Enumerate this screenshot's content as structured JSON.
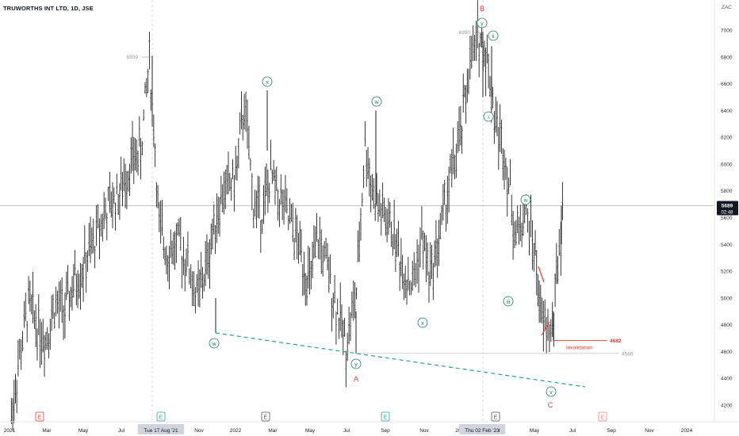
{
  "header": {
    "title": "TRUWORTHS INT LTD, 1D, JSE",
    "currency": "ZAC"
  },
  "colors": {
    "bars": "#1f1f1f",
    "wave": "#1a7a5a",
    "red": "#e53935",
    "teal": "#2a9d8f",
    "grid": "#d8dbe0"
  },
  "chart_data": {
    "type": "line",
    "title": "TRUWORTHS INT LTD, 1D, JSE",
    "x_axis": {
      "ticks": [
        "2021",
        "Mar",
        "May",
        "Jul",
        "Tue 17 Aug '21",
        "Nov",
        "2022",
        "Mar",
        "May",
        "Jul",
        "Sep",
        "Nov",
        "20",
        "Thu 02 Feb '23",
        "r",
        "May",
        "Jul",
        "Sep",
        "Nov",
        "2024"
      ],
      "range": [
        "2021-01-01",
        "2024-03-31"
      ]
    },
    "y_axis": {
      "label": "ZAC",
      "ticks": [
        4200,
        4400,
        4600,
        4800,
        5000,
        5200,
        5400,
        5600,
        5800,
        6000,
        6200,
        6400,
        6600,
        6800,
        7000
      ],
      "range": [
        4090,
        7210
      ]
    },
    "series": [
      {
        "x": [
          "2021-01-04",
          "2021-01-15",
          "2021-02-01",
          "2021-02-15",
          "2021-03-01",
          "2021-03-15",
          "2021-04-01",
          "2021-04-15",
          "2021-05-03",
          "2021-05-17",
          "2021-06-01",
          "2021-06-15",
          "2021-07-01",
          "2021-07-15",
          "2021-08-02",
          "2021-08-16",
          "2021-08-23",
          "2021-09-01",
          "2021-09-15",
          "2021-10-01",
          "2021-10-15",
          "2021-11-01",
          "2021-11-15",
          "2021-12-01",
          "2021-12-15",
          "2022-01-03",
          "2022-01-17",
          "2022-02-01",
          "2022-02-15",
          "2022-03-01",
          "2022-03-15",
          "2022-04-01",
          "2022-04-15",
          "2022-05-03",
          "2022-05-17",
          "2022-06-01",
          "2022-06-15",
          "2022-07-01",
          "2022-07-18",
          "2022-08-01",
          "2022-08-15",
          "2022-09-01",
          "2022-09-15",
          "2022-10-03",
          "2022-10-17",
          "2022-11-01",
          "2022-11-15",
          "2022-12-01",
          "2022-12-15",
          "2023-01-03",
          "2023-01-16",
          "2023-02-02",
          "2023-02-15",
          "2023-03-01",
          "2023-03-15",
          "2023-04-03",
          "2023-04-17",
          "2023-05-02",
          "2023-05-15",
          "2023-06-01",
          "2023-06-12",
          "2023-06-20"
        ],
        "close": [
          4120,
          4500,
          4950,
          4800,
          4700,
          4950,
          4900,
          5100,
          5250,
          5400,
          5600,
          5700,
          5800,
          6000,
          6100,
          6780,
          6300,
          5500,
          5350,
          5400,
          5300,
          5000,
          5200,
          5600,
          5800,
          5900,
          6450,
          5700,
          5650,
          5900,
          5750,
          5550,
          5400,
          5100,
          5450,
          5200,
          4950,
          4650,
          5050,
          6150,
          5750,
          5600,
          5500,
          5200,
          5100,
          5450,
          5150,
          5500,
          5850,
          6200,
          6700,
          6950,
          6800,
          6300,
          6100,
          5450,
          5650,
          5400,
          4800,
          4750,
          5400,
          5680
        ]
      }
    ],
    "annotations": [
      {
        "text": "6809",
        "kind": "price-label"
      },
      {
        "text": "6990",
        "kind": "price-label"
      },
      {
        "text": "4586",
        "kind": "price-label"
      },
      {
        "text": "4682",
        "kind": "price-label-red"
      },
      {
        "text": "Invalidation",
        "kind": "red-text"
      },
      {
        "text": "B",
        "kind": "wave-red"
      },
      {
        "text": "A",
        "kind": "wave-red"
      },
      {
        "text": "C",
        "kind": "wave-red"
      },
      {
        "text": "y",
        "kind": "wave-circle"
      },
      {
        "text": "ii",
        "kind": "wave-circle"
      },
      {
        "text": "x",
        "kind": "wave-circle"
      },
      {
        "text": "w",
        "kind": "wave-circle"
      },
      {
        "text": "i",
        "kind": "wave-circle"
      },
      {
        "text": "iv",
        "kind": "wave-circle"
      },
      {
        "text": "iii",
        "kind": "wave-circle"
      },
      {
        "text": "x",
        "kind": "wave-circle"
      },
      {
        "text": "w",
        "kind": "wave-circle"
      },
      {
        "text": "y",
        "kind": "wave-circle"
      },
      {
        "text": "v",
        "kind": "wave-circle"
      }
    ],
    "last_price": {
      "value": "5689",
      "time": "02:48"
    },
    "event_markers": [
      "E",
      "E",
      "E",
      "E",
      "E",
      "E"
    ],
    "grid": true,
    "legend": "none"
  }
}
